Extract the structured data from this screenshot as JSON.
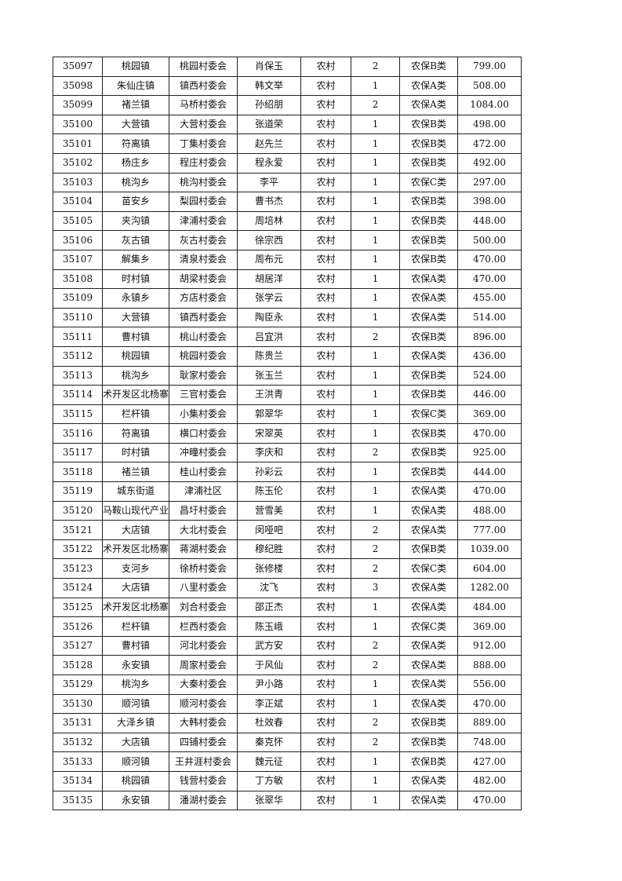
{
  "rows": [
    [
      "35097",
      "桃园镇",
      "桃园村委会",
      "肖保玉",
      "农村",
      "2",
      "农保B类",
      "799.00"
    ],
    [
      "35098",
      "朱仙庄镇",
      "镇西村委会",
      "韩文举",
      "农村",
      "1",
      "农保A类",
      "508.00"
    ],
    [
      "35099",
      "褚兰镇",
      "马桥村委会",
      "孙绍朋",
      "农村",
      "2",
      "农保A类",
      "1084.00"
    ],
    [
      "35100",
      "大营镇",
      "大营村委会",
      "张道荣",
      "农村",
      "1",
      "农保B类",
      "498.00"
    ],
    [
      "35101",
      "符离镇",
      "丁集村委会",
      "赵先兰",
      "农村",
      "1",
      "农保B类",
      "472.00"
    ],
    [
      "35102",
      "杨庄乡",
      "程庄村委会",
      "程永爱",
      "农村",
      "1",
      "农保B类",
      "492.00"
    ],
    [
      "35103",
      "桃沟乡",
      "桃沟村委会",
      "李平",
      "农村",
      "1",
      "农保C类",
      "297.00"
    ],
    [
      "35104",
      "苗安乡",
      "梨园村委会",
      "曹书杰",
      "农村",
      "1",
      "农保B类",
      "398.00"
    ],
    [
      "35105",
      "夹沟镇",
      "津浦村委会",
      "周培林",
      "农村",
      "1",
      "农保B类",
      "448.00"
    ],
    [
      "35106",
      "灰古镇",
      "灰古村委会",
      "徐宗西",
      "农村",
      "1",
      "农保B类",
      "500.00"
    ],
    [
      "35107",
      "解集乡",
      "清泉村委会",
      "周布元",
      "农村",
      "1",
      "农保B类",
      "470.00"
    ],
    [
      "35108",
      "时村镇",
      "胡梁村委会",
      "胡居洋",
      "农村",
      "1",
      "农保A类",
      "470.00"
    ],
    [
      "35109",
      "永镇乡",
      "方店村委会",
      "张学云",
      "农村",
      "1",
      "农保A类",
      "455.00"
    ],
    [
      "35110",
      "大营镇",
      "镇西村委会",
      "陶臣永",
      "农村",
      "1",
      "农保A类",
      "514.00"
    ],
    [
      "35111",
      "曹村镇",
      "桃山村委会",
      "吕宜洪",
      "农村",
      "2",
      "农保B类",
      "896.00"
    ],
    [
      "35112",
      "桃园镇",
      "桃园村委会",
      "陈贵兰",
      "农村",
      "1",
      "农保A类",
      "436.00"
    ],
    [
      "35113",
      "桃沟乡",
      "耿家村委会",
      "张玉兰",
      "农村",
      "1",
      "农保B类",
      "524.00"
    ],
    [
      "35114",
      "术开发区北杨寨",
      "三官村委会",
      "王洪青",
      "农村",
      "1",
      "农保B类",
      "446.00"
    ],
    [
      "35115",
      "栏杆镇",
      "小集村委会",
      "郭翠华",
      "农村",
      "1",
      "农保C类",
      "369.00"
    ],
    [
      "35116",
      "符离镇",
      "横口村委会",
      "宋翠英",
      "农村",
      "1",
      "农保B类",
      "470.00"
    ],
    [
      "35117",
      "时村镇",
      "冲疃村委会",
      "李庆和",
      "农村",
      "2",
      "农保B类",
      "925.00"
    ],
    [
      "35118",
      "褚兰镇",
      "桂山村委会",
      "孙彩云",
      "农村",
      "1",
      "农保B类",
      "444.00"
    ],
    [
      "35119",
      "城东街道",
      "津浦社区",
      "陈玉伦",
      "农村",
      "1",
      "农保A类",
      "470.00"
    ],
    [
      "35120",
      "马鞍山现代产业",
      "昌圩村委会",
      "营雪美",
      "农村",
      "1",
      "农保A类",
      "488.00"
    ],
    [
      "35121",
      "大店镇",
      "大北村委会",
      "闵哑吧",
      "农村",
      "2",
      "农保A类",
      "777.00"
    ],
    [
      "35122",
      "术开发区北杨寨",
      "蒋湖村委会",
      "穆纪胜",
      "农村",
      "2",
      "农保B类",
      "1039.00"
    ],
    [
      "35123",
      "支河乡",
      "徐桥村委会",
      "张修楼",
      "农村",
      "2",
      "农保C类",
      "604.00"
    ],
    [
      "35124",
      "大店镇",
      "八里村委会",
      "沈飞",
      "农村",
      "3",
      "农保A类",
      "1282.00"
    ],
    [
      "35125",
      "术开发区北杨寨",
      "刘合村委会",
      "邵正杰",
      "农村",
      "1",
      "农保A类",
      "484.00"
    ],
    [
      "35126",
      "栏杆镇",
      "栏西村委会",
      "陈玉峨",
      "农村",
      "1",
      "农保C类",
      "369.00"
    ],
    [
      "35127",
      "曹村镇",
      "河北村委会",
      "武方安",
      "农村",
      "2",
      "农保A类",
      "912.00"
    ],
    [
      "35128",
      "永安镇",
      "周家村委会",
      "于风仙",
      "农村",
      "2",
      "农保A类",
      "888.00"
    ],
    [
      "35129",
      "桃沟乡",
      "大秦村委会",
      "尹小路",
      "农村",
      "1",
      "农保A类",
      "556.00"
    ],
    [
      "35130",
      "顺河镇",
      "顺河村委会",
      "李正斌",
      "农村",
      "1",
      "农保A类",
      "470.00"
    ],
    [
      "35131",
      "大泽乡镇",
      "大韩村委会",
      "杜效春",
      "农村",
      "2",
      "农保B类",
      "889.00"
    ],
    [
      "35132",
      "大店镇",
      "四铺村委会",
      "秦克怀",
      "农村",
      "2",
      "农保B类",
      "748.00"
    ],
    [
      "35133",
      "顺河镇",
      "王井涯村委会",
      "魏元征",
      "农村",
      "1",
      "农保B类",
      "427.00"
    ],
    [
      "35134",
      "桃园镇",
      "钱营村委会",
      "丁方敏",
      "农村",
      "1",
      "农保A类",
      "482.00"
    ],
    [
      "35135",
      "永安镇",
      "潘湖村委会",
      "张翠华",
      "农村",
      "1",
      "农保A类",
      "470.00"
    ]
  ]
}
